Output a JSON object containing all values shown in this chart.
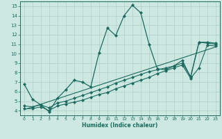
{
  "title": "",
  "xlabel": "Humidex (Indice chaleur)",
  "xlim": [
    -0.5,
    23.5
  ],
  "ylim": [
    3.5,
    15.5
  ],
  "yticks": [
    4,
    5,
    6,
    7,
    8,
    9,
    10,
    11,
    12,
    13,
    14,
    15
  ],
  "xticks": [
    0,
    1,
    2,
    3,
    4,
    5,
    6,
    7,
    8,
    9,
    10,
    11,
    12,
    13,
    14,
    15,
    16,
    17,
    18,
    19,
    20,
    21,
    22,
    23
  ],
  "bg_color": "#cce8e0",
  "grid_color": "#b0ccc8",
  "line_color": "#1a6a60",
  "line1_x": [
    0,
    1,
    2,
    3,
    4,
    5,
    6,
    7,
    8,
    9,
    10,
    11,
    12,
    13,
    14,
    15,
    16,
    17,
    18,
    19,
    20,
    21,
    22,
    23
  ],
  "line1_y": [
    6.8,
    5.2,
    4.6,
    3.9,
    5.3,
    6.2,
    7.2,
    7.0,
    6.5,
    10.1,
    12.7,
    11.9,
    14.0,
    15.1,
    14.3,
    11.0,
    8.4,
    8.3,
    8.7,
    9.3,
    7.5,
    11.2,
    11.2,
    11.1
  ],
  "line2_x": [
    0,
    1,
    2,
    3,
    4,
    5,
    6,
    7,
    8,
    9,
    10,
    11,
    12,
    13,
    14,
    15,
    16,
    17,
    18,
    19,
    20,
    21,
    22,
    23
  ],
  "line2_y": [
    4.5,
    4.4,
    4.6,
    4.3,
    4.8,
    5.0,
    5.3,
    5.6,
    5.9,
    6.2,
    6.5,
    6.9,
    7.2,
    7.5,
    7.8,
    8.1,
    8.3,
    8.5,
    8.7,
    9.0,
    7.6,
    11.2,
    11.1,
    11.0
  ],
  "line3_x": [
    0,
    1,
    2,
    3,
    4,
    5,
    6,
    7,
    8,
    9,
    10,
    11,
    12,
    13,
    14,
    15,
    16,
    17,
    18,
    19,
    20,
    21,
    22,
    23
  ],
  "line3_y": [
    4.2,
    4.2,
    4.4,
    4.0,
    4.5,
    4.7,
    4.9,
    5.1,
    5.4,
    5.7,
    5.9,
    6.3,
    6.6,
    6.9,
    7.2,
    7.5,
    7.9,
    8.2,
    8.5,
    8.8,
    7.4,
    8.5,
    10.9,
    10.8
  ],
  "line4_x": [
    0,
    23
  ],
  "line4_y": [
    4.1,
    10.7
  ]
}
